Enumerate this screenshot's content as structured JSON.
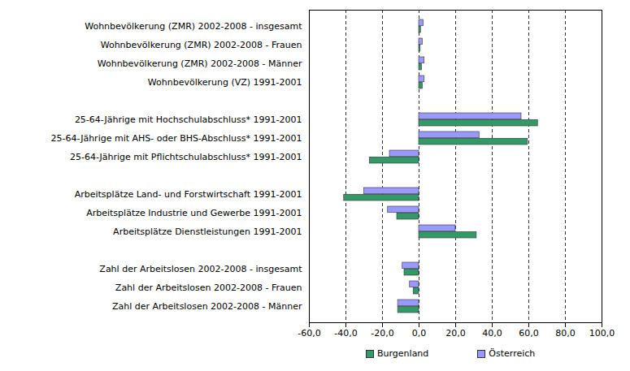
{
  "chart_data": {
    "type": "bar",
    "orientation": "horizontal",
    "categories": [
      "Wohnbevölkerung (ZMR) 2002-2008 - insgesamt",
      "Wohnbevölkerung (ZMR) 2002-2008 - Frauen",
      "Wohnbevölkerung (ZMR) 2002-2008 - Männer",
      "Wohnbevölkerung (VZ) 1991-2001",
      null,
      "25-64-Jährige mit Hochschulabschluss* 1991-2001",
      "25-64-Jährige mit AHS- oder BHS-Abschluss* 1991-2001",
      "25-64-Jährige mit Pflichtschulabschluss* 1991-2001",
      null,
      "Arbeitsplätze Land- und Forstwirtschaft 1991-2001",
      "Arbeitsplätze Industrie und Gewerbe 1991-2001",
      "Arbeitsplätze Dienstleistungen 1991-2001",
      null,
      "Zahl der Arbeitslosen 2002-2008 - insgesamt",
      "Zahl der Arbeitslosen 2002-2008 - Frauen",
      "Zahl der Arbeitslosen 2002-2008 - Männer"
    ],
    "series": [
      {
        "name": "Burgenland",
        "color": "#339966",
        "values": [
          1.0,
          0.8,
          1.5,
          2.0,
          null,
          65,
          59.5,
          -27,
          null,
          -41,
          -12,
          31.5,
          null,
          -8,
          -3,
          -11.5
        ]
      },
      {
        "name": "Österreich",
        "color": "#9999ff",
        "values": [
          2.5,
          2.0,
          3.0,
          3.0,
          null,
          56,
          33,
          -16,
          null,
          -30,
          -17,
          20,
          null,
          -9,
          -5,
          -11.5
        ]
      }
    ],
    "xlim": [
      -60,
      100
    ],
    "xticks": [
      {
        "value": -60,
        "label": "-60,0"
      },
      {
        "value": -40,
        "label": "-40,0"
      },
      {
        "value": -20,
        "label": "-20,0"
      },
      {
        "value": 0,
        "label": "0,0"
      },
      {
        "value": 20,
        "label": "20,0"
      },
      {
        "value": 40,
        "label": "40,0"
      },
      {
        "value": 60,
        "label": "60,0"
      },
      {
        "value": 80,
        "label": "80,0"
      },
      {
        "value": 100,
        "label": "100,0"
      }
    ],
    "grid": true,
    "legend": "bottom"
  }
}
